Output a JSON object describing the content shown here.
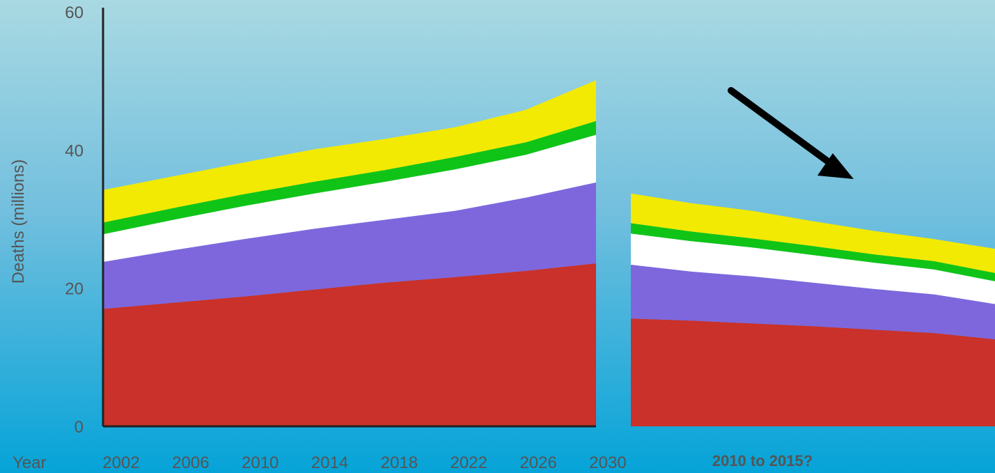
{
  "chart_data": [
    {
      "type": "area",
      "stacked": true,
      "ylabel": "Deaths (millions)",
      "xlabel": "Year",
      "ylim": [
        0,
        60
      ],
      "yticks": [
        0,
        20,
        40,
        60
      ],
      "x": [
        2002,
        2006,
        2010,
        2014,
        2018,
        2022,
        2026,
        2030
      ],
      "series": [
        {
          "color": "#c9312a",
          "values": [
            17.0,
            17.9,
            18.8,
            19.8,
            20.8,
            21.6,
            22.5,
            23.6
          ]
        },
        {
          "color": "#7e67dd",
          "values": [
            6.8,
            7.6,
            8.3,
            8.8,
            9.1,
            9.6,
            10.6,
            11.7
          ]
        },
        {
          "color": "#ffffff",
          "values": [
            4.0,
            4.4,
            4.8,
            5.1,
            5.5,
            6.0,
            6.2,
            6.9
          ]
        },
        {
          "color": "#10c417",
          "values": [
            1.7,
            1.7,
            1.7,
            1.7,
            1.7,
            1.8,
            1.8,
            2.0
          ]
        },
        {
          "color": "#f2ea02",
          "values": [
            4.7,
            4.6,
            4.6,
            4.7,
            4.5,
            4.3,
            4.7,
            5.9
          ]
        }
      ]
    },
    {
      "type": "area",
      "stacked": true,
      "note": "2010 to 2015?",
      "x": [
        0,
        1,
        2,
        3,
        4,
        5,
        6
      ],
      "series": [
        {
          "color": "#c9312a",
          "values": [
            15.6,
            15.3,
            14.9,
            14.5,
            14.0,
            13.5,
            12.6
          ]
        },
        {
          "color": "#7e67dd",
          "values": [
            7.8,
            7.1,
            6.8,
            6.3,
            5.9,
            5.6,
            5.1
          ]
        },
        {
          "color": "#ffffff",
          "values": [
            4.5,
            4.4,
            4.2,
            4.0,
            3.8,
            3.6,
            3.3
          ]
        },
        {
          "color": "#10c417",
          "values": [
            1.5,
            1.4,
            1.3,
            1.3,
            1.2,
            1.2,
            1.2
          ]
        },
        {
          "color": "#f2ea02",
          "values": [
            4.3,
            4.1,
            4.0,
            3.6,
            3.4,
            3.2,
            3.5
          ]
        }
      ]
    }
  ]
}
